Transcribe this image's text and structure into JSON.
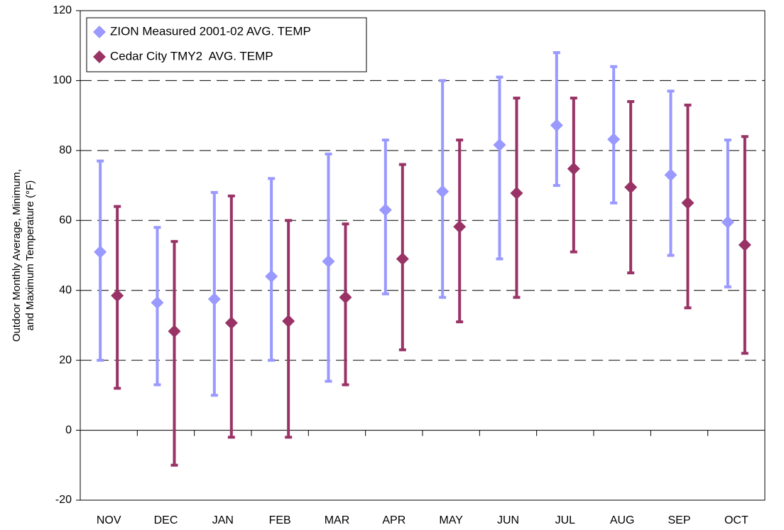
{
  "chart_data": {
    "type": "hilo",
    "ylabel": [
      "Outdoor Monthly Average, Minimum,",
      "and Maximum Temperature (°F)"
    ],
    "categories": [
      "NOV",
      "DEC",
      "JAN",
      "FEB",
      "MAR",
      "APR",
      "MAY",
      "JUN",
      "JUL",
      "AUG",
      "SEP",
      "OCT"
    ],
    "series": [
      {
        "name": "ZION Measured 2001-02 AVG. TEMP",
        "color": "#9999ff",
        "values": [
          51,
          36.5,
          37.5,
          44,
          48.3,
          63,
          68.3,
          81.6,
          87.2,
          83.2,
          73,
          59.5
        ],
        "min": [
          20,
          13,
          10,
          20,
          14,
          39,
          38,
          49,
          70,
          65,
          50,
          41
        ],
        "max": [
          77,
          58,
          68,
          72,
          79,
          83,
          100,
          101,
          108,
          104,
          97,
          83
        ]
      },
      {
        "name": "Cedar City TMY2  AVG. TEMP",
        "color": "#993366",
        "values": [
          38.5,
          28.3,
          30.7,
          31.2,
          38,
          49,
          58.2,
          67.8,
          74.8,
          69.5,
          65,
          53
        ],
        "min": [
          12,
          -10,
          -2,
          -2,
          13,
          23,
          31,
          38,
          51,
          45,
          35,
          22
        ],
        "max": [
          64,
          54,
          67,
          60,
          59,
          76,
          83,
          95,
          95,
          94,
          93,
          84
        ]
      }
    ],
    "ylim": [
      -20,
      120
    ],
    "yticks": [
      -20,
      0,
      20,
      40,
      60,
      80,
      100,
      120
    ],
    "grid": true,
    "legend": "top-left"
  }
}
